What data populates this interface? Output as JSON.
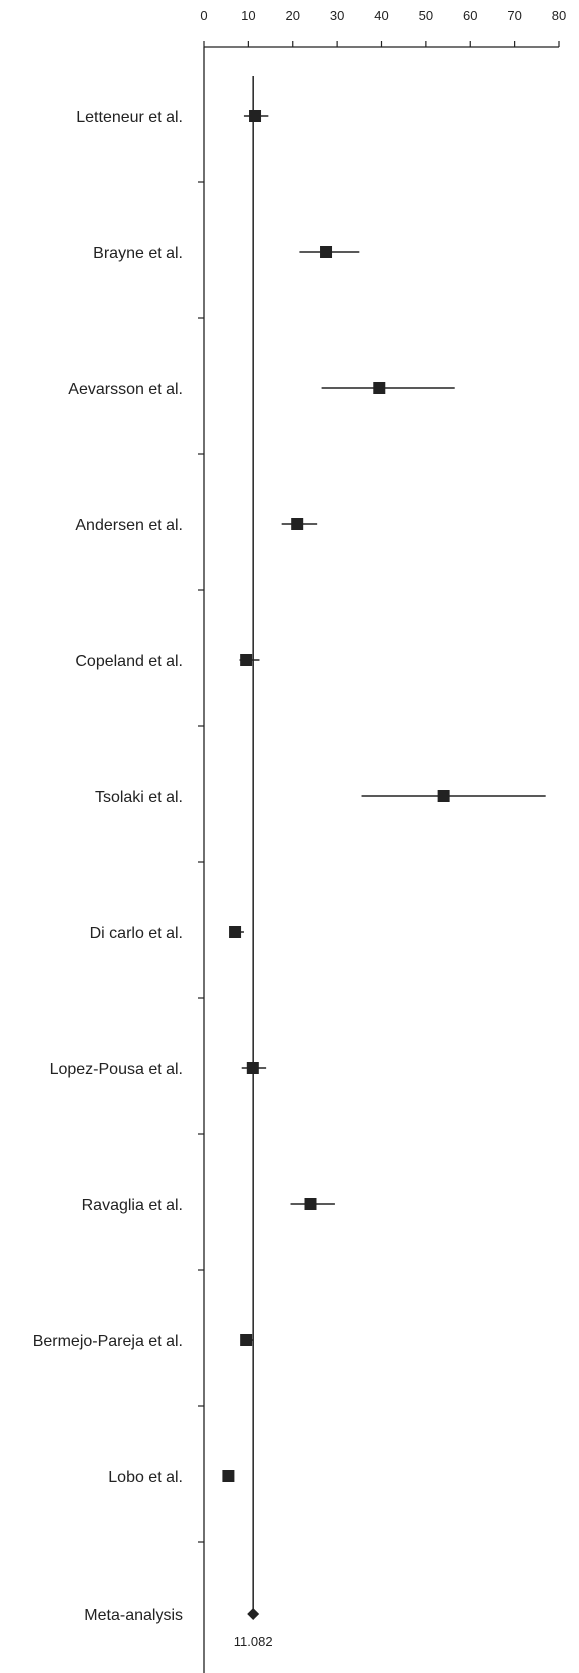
{
  "chart_data": {
    "type": "forest",
    "title": "",
    "xlabel": "",
    "ylabel": "",
    "xlim": [
      0,
      80
    ],
    "xticks": [
      0,
      10,
      20,
      30,
      40,
      50,
      60,
      70,
      80
    ],
    "reference_line": 11.082,
    "studies": [
      {
        "label": "Letteneur et al.",
        "estimate": 11.5,
        "ci": [
          9.0,
          14.5
        ]
      },
      {
        "label": "Brayne et al.",
        "estimate": 27.5,
        "ci": [
          21.5,
          35.0
        ]
      },
      {
        "label": "Aevarsson et al.",
        "estimate": 39.5,
        "ci": [
          26.5,
          56.5
        ]
      },
      {
        "label": "Andersen et al.",
        "estimate": 21.0,
        "ci": [
          17.5,
          25.5
        ]
      },
      {
        "label": "Copeland et al.",
        "estimate": 9.5,
        "ci": [
          8.0,
          12.5
        ]
      },
      {
        "label": "Tsolaki et al.",
        "estimate": 54.0,
        "ci": [
          35.5,
          77.0
        ]
      },
      {
        "label": "Di carlo et al.",
        "estimate": 7.0,
        "ci": [
          6.0,
          9.0
        ]
      },
      {
        "label": "Lopez-Pousa et al.",
        "estimate": 11.0,
        "ci": [
          8.5,
          14.0
        ]
      },
      {
        "label": "Ravaglia et al.",
        "estimate": 24.0,
        "ci": [
          19.5,
          29.5
        ]
      },
      {
        "label": "Bermejo-Pareja et al.",
        "estimate": 9.5,
        "ci": [
          8.5,
          11.0
        ]
      },
      {
        "label": "Lobo et al.",
        "estimate": 5.5,
        "ci": [
          5.0,
          6.0
        ]
      }
    ],
    "pooled": {
      "label": "Meta-analysis",
      "estimate": 11.082,
      "value_label": "11.082"
    }
  }
}
